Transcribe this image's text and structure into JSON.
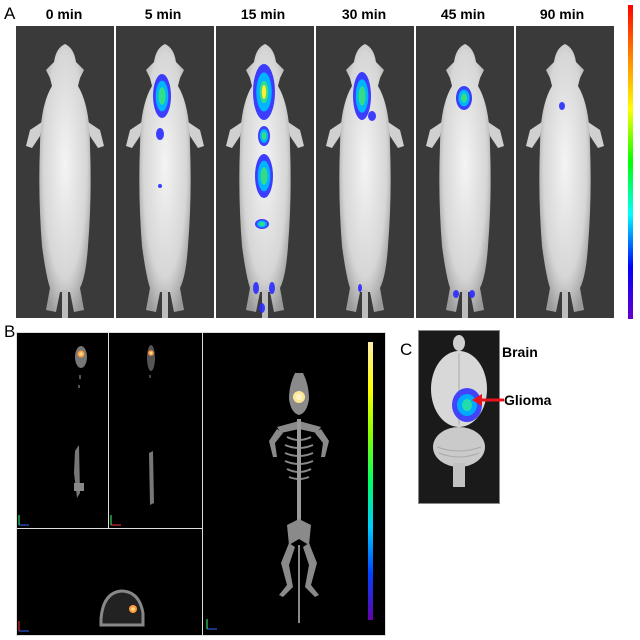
{
  "panel_a": {
    "letter": "A",
    "timepoints": [
      "0 min",
      "5 min",
      "15 min",
      "30 min",
      "45 min",
      "90 min"
    ]
  },
  "panel_b": {
    "letter": "B"
  },
  "panel_c": {
    "letter": "C",
    "label_brain": "Brain",
    "label_glioma": "Glioma"
  },
  "colors": {
    "arrow": "#e8141c",
    "background": "#ffffff",
    "frame": "#3a3a3a"
  }
}
